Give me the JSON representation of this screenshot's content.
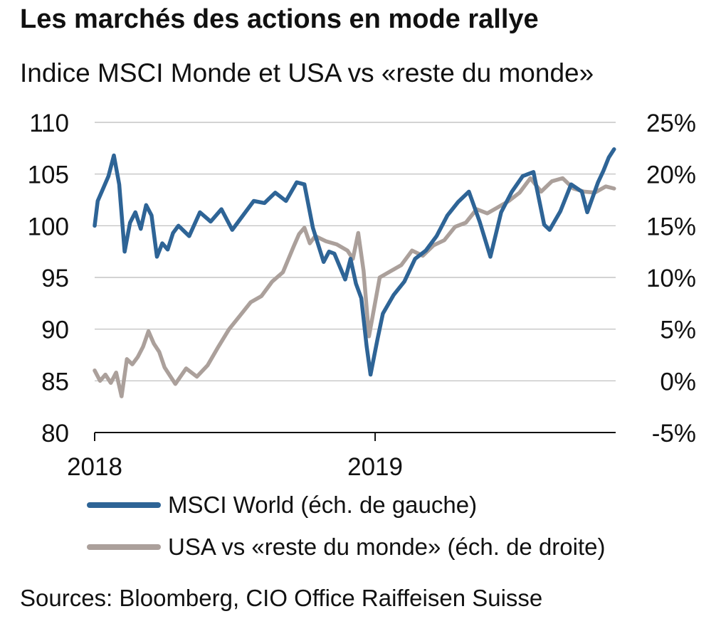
{
  "title": "Les marchés des actions en mode rallye",
  "subtitle": "Indice MSCI Monde et USA vs «reste du monde»",
  "source": "Sources: Bloomberg, CIO Office Raiffeisen Suisse",
  "chart_data": {
    "type": "line",
    "x_tick_labels": [
      "2018",
      "2019"
    ],
    "x_tick_dates": [
      "2018-01-01",
      "2019-01-01"
    ],
    "x_range": [
      "2018-01-01",
      "2019-11-10"
    ],
    "y_left": {
      "ticks": [
        "80",
        "85",
        "90",
        "95",
        "100",
        "105",
        "110"
      ],
      "range": [
        80,
        110
      ]
    },
    "y_right": {
      "ticks": [
        "-5%",
        "0%",
        "5%",
        "10%",
        "15%",
        "20%",
        "25%"
      ],
      "range": [
        -5,
        25
      ],
      "unit": "%"
    },
    "grid": "horizontal",
    "legend_position": "bottom",
    "series": [
      {
        "name": "MSCI World (éch. de gauche)",
        "axis": "left",
        "color": "#2e6496",
        "points": [
          [
            "2018-01-01",
            100.0
          ],
          [
            "2018-01-05",
            102.4
          ],
          [
            "2018-01-12",
            103.6
          ],
          [
            "2018-01-19",
            104.8
          ],
          [
            "2018-01-26",
            106.8
          ],
          [
            "2018-02-02",
            104.0
          ],
          [
            "2018-02-09",
            97.5
          ],
          [
            "2018-02-16",
            100.3
          ],
          [
            "2018-02-23",
            101.3
          ],
          [
            "2018-03-02",
            99.7
          ],
          [
            "2018-03-09",
            102.0
          ],
          [
            "2018-03-16",
            101.0
          ],
          [
            "2018-03-23",
            97.0
          ],
          [
            "2018-03-30",
            98.3
          ],
          [
            "2018-04-06",
            97.7
          ],
          [
            "2018-04-13",
            99.3
          ],
          [
            "2018-04-20",
            100.0
          ],
          [
            "2018-05-04",
            99.0
          ],
          [
            "2018-05-18",
            101.3
          ],
          [
            "2018-06-01",
            100.4
          ],
          [
            "2018-06-15",
            101.6
          ],
          [
            "2018-06-29",
            99.6
          ],
          [
            "2018-07-13",
            101.0
          ],
          [
            "2018-07-27",
            102.4
          ],
          [
            "2018-08-10",
            102.2
          ],
          [
            "2018-08-24",
            103.2
          ],
          [
            "2018-09-07",
            102.4
          ],
          [
            "2018-09-21",
            104.2
          ],
          [
            "2018-10-01",
            104.0
          ],
          [
            "2018-10-12",
            99.8
          ],
          [
            "2018-10-26",
            96.5
          ],
          [
            "2018-11-02",
            97.5
          ],
          [
            "2018-11-09",
            97.3
          ],
          [
            "2018-11-23",
            94.8
          ],
          [
            "2018-11-30",
            96.8
          ],
          [
            "2018-12-07",
            94.4
          ],
          [
            "2018-12-14",
            93.0
          ],
          [
            "2018-12-21",
            88.3
          ],
          [
            "2018-12-26",
            85.6
          ],
          [
            "2019-01-04",
            89.0
          ],
          [
            "2019-01-11",
            91.5
          ],
          [
            "2019-01-25",
            93.3
          ],
          [
            "2019-02-08",
            94.6
          ],
          [
            "2019-02-22",
            96.8
          ],
          [
            "2019-03-08",
            97.6
          ],
          [
            "2019-03-22",
            99.0
          ],
          [
            "2019-04-05",
            101.0
          ],
          [
            "2019-04-19",
            102.3
          ],
          [
            "2019-05-03",
            103.3
          ],
          [
            "2019-05-17",
            100.4
          ],
          [
            "2019-05-31",
            97.0
          ],
          [
            "2019-06-14",
            101.3
          ],
          [
            "2019-06-28",
            103.3
          ],
          [
            "2019-07-12",
            104.8
          ],
          [
            "2019-07-26",
            105.2
          ],
          [
            "2019-08-09",
            100.1
          ],
          [
            "2019-08-16",
            99.6
          ],
          [
            "2019-08-30",
            101.4
          ],
          [
            "2019-09-13",
            104.0
          ],
          [
            "2019-09-27",
            103.3
          ],
          [
            "2019-10-04",
            101.3
          ],
          [
            "2019-10-18",
            104.2
          ],
          [
            "2019-10-25",
            105.3
          ],
          [
            "2019-11-01",
            106.6
          ],
          [
            "2019-11-08",
            107.4
          ]
        ]
      },
      {
        "name": "USA vs «reste du monde» (éch. de droite)",
        "axis": "right",
        "color": "#aba09b",
        "points": [
          [
            "2018-01-01",
            1.0
          ],
          [
            "2018-01-08",
            0.0
          ],
          [
            "2018-01-15",
            0.6
          ],
          [
            "2018-01-22",
            -0.2
          ],
          [
            "2018-01-29",
            0.8
          ],
          [
            "2018-02-05",
            -1.5
          ],
          [
            "2018-02-12",
            2.1
          ],
          [
            "2018-02-19",
            1.6
          ],
          [
            "2018-02-26",
            2.3
          ],
          [
            "2018-03-05",
            3.3
          ],
          [
            "2018-03-12",
            4.8
          ],
          [
            "2018-03-19",
            3.6
          ],
          [
            "2018-03-26",
            2.8
          ],
          [
            "2018-04-02",
            1.3
          ],
          [
            "2018-04-09",
            0.5
          ],
          [
            "2018-04-16",
            -0.3
          ],
          [
            "2018-04-30",
            1.2
          ],
          [
            "2018-05-14",
            0.4
          ],
          [
            "2018-05-28",
            1.5
          ],
          [
            "2018-06-11",
            3.3
          ],
          [
            "2018-06-25",
            5.0
          ],
          [
            "2018-07-09",
            6.3
          ],
          [
            "2018-07-23",
            7.6
          ],
          [
            "2018-08-06",
            8.2
          ],
          [
            "2018-08-20",
            9.6
          ],
          [
            "2018-09-03",
            10.5
          ],
          [
            "2018-09-17",
            13.0
          ],
          [
            "2018-09-24",
            14.2
          ],
          [
            "2018-10-01",
            14.8
          ],
          [
            "2018-10-08",
            13.3
          ],
          [
            "2018-10-15",
            14.0
          ],
          [
            "2018-10-29",
            13.5
          ],
          [
            "2018-11-12",
            13.2
          ],
          [
            "2018-11-26",
            12.6
          ],
          [
            "2018-12-03",
            11.8
          ],
          [
            "2018-12-10",
            14.3
          ],
          [
            "2018-12-17",
            10.6
          ],
          [
            "2018-12-24",
            4.3
          ],
          [
            "2019-01-07",
            10.0
          ],
          [
            "2019-01-21",
            10.6
          ],
          [
            "2019-02-04",
            11.2
          ],
          [
            "2019-02-18",
            12.6
          ],
          [
            "2019-03-04",
            12.1
          ],
          [
            "2019-03-18",
            13.1
          ],
          [
            "2019-04-01",
            13.6
          ],
          [
            "2019-04-15",
            14.9
          ],
          [
            "2019-04-29",
            15.3
          ],
          [
            "2019-05-13",
            16.6
          ],
          [
            "2019-05-27",
            16.2
          ],
          [
            "2019-06-10",
            16.8
          ],
          [
            "2019-06-24",
            17.4
          ],
          [
            "2019-07-08",
            18.2
          ],
          [
            "2019-07-22",
            19.6
          ],
          [
            "2019-08-05",
            18.3
          ],
          [
            "2019-08-19",
            19.3
          ],
          [
            "2019-09-02",
            19.6
          ],
          [
            "2019-09-16",
            18.6
          ],
          [
            "2019-09-30",
            18.3
          ],
          [
            "2019-10-14",
            18.2
          ],
          [
            "2019-10-28",
            18.8
          ],
          [
            "2019-11-08",
            18.6
          ]
        ]
      }
    ]
  }
}
